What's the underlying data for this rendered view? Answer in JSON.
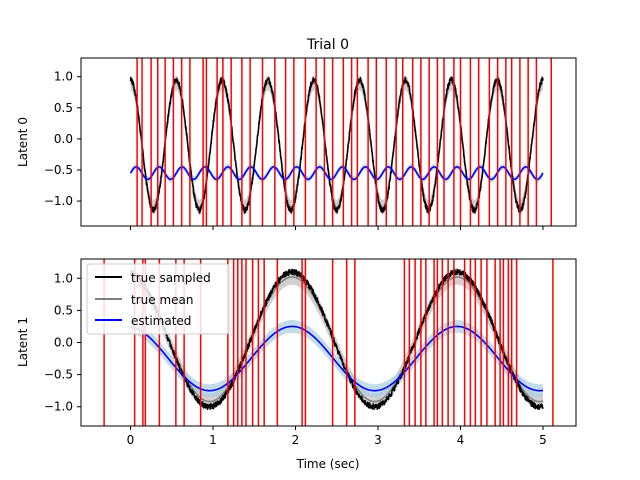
{
  "chart_data": [
    {
      "type": "line",
      "title": "Trial 0",
      "ylabel": "Latent 0",
      "xlabel": "",
      "xlim": [
        -0.6,
        5.4
      ],
      "ylim": [
        -1.4,
        1.3
      ],
      "xticks": [
        0,
        1,
        2,
        3,
        4,
        5
      ],
      "xtick_labels": [
        "",
        "",
        "",
        "",
        "",
        ""
      ],
      "yticks": [
        1.0,
        0.5,
        0.0,
        -0.5,
        -1.0
      ],
      "ytick_labels": [
        "1.0",
        "0.5",
        "0.0",
        "−0.5",
        "−1.0"
      ],
      "grid": false,
      "series": [
        {
          "name": "true sampled",
          "color": "#000000",
          "function": "sin",
          "amplitude": 1.05,
          "frequency_hz": 1.8,
          "phase": 1.57,
          "offset": -0.1,
          "x_range": [
            0,
            5
          ]
        },
        {
          "name": "true mean",
          "color": "#808080",
          "function": "sin",
          "amplitude": 1.0,
          "frequency_hz": 1.8,
          "phase": 1.57,
          "offset": -0.1,
          "x_range": [
            0,
            5
          ]
        },
        {
          "name": "estimated",
          "color": "#0000ff",
          "band_color": "#a6cee3",
          "function": "sin",
          "amplitude": 0.1,
          "frequency_hz": 3.6,
          "phase": 0.0,
          "offset": -0.55,
          "x_range": [
            0,
            5
          ]
        }
      ],
      "events_x": [
        0.08,
        0.14,
        0.25,
        0.33,
        0.42,
        0.52,
        0.62,
        0.72,
        0.88,
        0.92,
        1.05,
        1.12,
        1.22,
        1.35,
        1.45,
        1.6,
        1.75,
        1.88,
        1.98,
        2.12,
        2.25,
        2.35,
        2.45,
        2.58,
        2.68,
        2.75,
        2.88,
        2.98,
        3.1,
        3.22,
        3.3,
        3.42,
        3.52,
        3.62,
        3.72,
        3.8,
        3.92,
        4.0,
        4.12,
        4.22,
        4.35,
        4.45,
        4.55,
        4.62,
        4.72,
        4.82,
        4.92,
        5.1
      ],
      "event_color": "#ff0000"
    },
    {
      "type": "line",
      "title": "",
      "ylabel": "Latent 1",
      "xlabel": "Time (sec)",
      "xlim": [
        -0.6,
        5.4
      ],
      "ylim": [
        -1.3,
        1.3
      ],
      "xticks": [
        0,
        1,
        2,
        3,
        4,
        5
      ],
      "xtick_labels": [
        "0",
        "1",
        "2",
        "3",
        "4",
        "5"
      ],
      "yticks": [
        1.0,
        0.5,
        0.0,
        -0.5,
        -1.0
      ],
      "ytick_labels": [
        "1.0",
        "0.5",
        "0.0",
        "−0.5",
        "−1.0"
      ],
      "grid": false,
      "legend": {
        "placement": "top-left",
        "entries": [
          {
            "label": "true sampled",
            "color": "#000000"
          },
          {
            "label": "true mean",
            "color": "#808080"
          },
          {
            "label": "estimated",
            "color": "#0000ff"
          }
        ]
      },
      "series": [
        {
          "name": "true sampled",
          "color": "#000000",
          "function": "sin",
          "amplitude": 1.05,
          "frequency_hz": 0.5,
          "phase": 1.7,
          "offset": 0.05,
          "x_range": [
            0,
            5
          ]
        },
        {
          "name": "true mean",
          "color": "#808080",
          "function": "sin",
          "amplitude": 0.97,
          "frequency_hz": 0.5,
          "phase": 1.7,
          "offset": 0.05,
          "x_range": [
            0,
            5
          ]
        },
        {
          "name": "estimated",
          "color": "#0000ff",
          "band_color": "#a6cee3",
          "function": "sin",
          "amplitude": 0.5,
          "frequency_hz": 0.5,
          "phase": 1.7,
          "offset": -0.25,
          "x_range": [
            0,
            5
          ]
        }
      ],
      "events_x": [
        -0.32,
        0.05,
        0.15,
        0.18,
        0.35,
        0.55,
        0.65,
        0.85,
        1.18,
        1.25,
        1.3,
        1.35,
        1.4,
        1.48,
        1.55,
        1.62,
        1.78,
        2.08,
        2.12,
        2.45,
        2.62,
        2.72,
        3.32,
        3.38,
        3.45,
        3.52,
        3.58,
        3.68,
        3.72,
        3.78,
        3.85,
        3.92,
        4.05,
        4.12,
        4.18,
        4.25,
        4.32,
        4.42,
        4.48,
        4.52,
        4.58,
        4.62,
        4.68,
        5.12
      ],
      "event_color": "#ff0000"
    }
  ]
}
